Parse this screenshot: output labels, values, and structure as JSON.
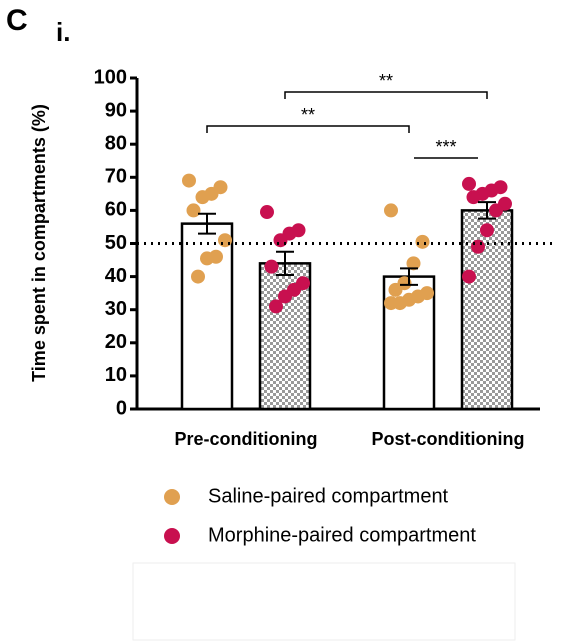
{
  "chart_data": {
    "type": "bar",
    "panel": "C",
    "subpanel": "i.",
    "y_label": "Time spent in compartments (%)",
    "categories": [
      "Pre-conditioning",
      "Post-conditioning"
    ],
    "series": [
      {
        "name": "Saline-paired compartment",
        "color": "#e0a050",
        "values": [
          56,
          40
        ],
        "errors": [
          3,
          2.5
        ],
        "points": [
          [
            69,
            67,
            65,
            64,
            60,
            51,
            46,
            45.5,
            40
          ],
          [
            60,
            50.5,
            44,
            38,
            36,
            35,
            34,
            33,
            32,
            32
          ]
        ]
      },
      {
        "name": "Morphine-paired compartment",
        "color": "#c8104f",
        "values": [
          44,
          60
        ],
        "errors": [
          3.5,
          2.5
        ],
        "points": [
          [
            59.5,
            54,
            53,
            51,
            43,
            38,
            36,
            34,
            31
          ],
          [
            68,
            67,
            66,
            65,
            64,
            62,
            60,
            54,
            49,
            40
          ]
        ]
      }
    ],
    "reference_line": 50,
    "annotations": [
      "**",
      "**",
      "***"
    ],
    "ylim": [
      0,
      100
    ],
    "yticks": [
      0,
      10,
      20,
      30,
      40,
      50,
      60,
      70,
      80,
      90,
      100
    ]
  }
}
